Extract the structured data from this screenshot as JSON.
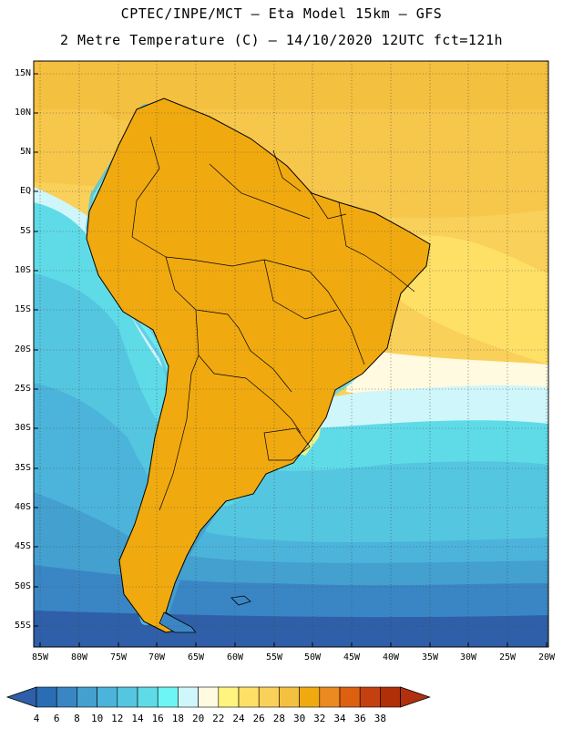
{
  "header": {
    "line1": "CPTEC/INPE/MCT –  Eta Model 15km – GFS",
    "line2": "2 Metre Temperature (C) – 14/10/2020 12UTC fct=121h"
  },
  "map": {
    "lat_labels": [
      "15N",
      "10N",
      "5N",
      "EQ",
      "5S",
      "10S",
      "15S",
      "20S",
      "25S",
      "30S",
      "35S",
      "40S",
      "45S",
      "50S",
      "55S"
    ],
    "lon_labels": [
      "85W",
      "80W",
      "75W",
      "70W",
      "65W",
      "60W",
      "55W",
      "50W",
      "45W",
      "40W",
      "35W",
      "30W",
      "25W",
      "20W"
    ]
  },
  "colorbar": {
    "labels": [
      "4",
      "6",
      "8",
      "10",
      "12",
      "14",
      "16",
      "18",
      "20",
      "22",
      "24",
      "26",
      "28",
      "30",
      "32",
      "34",
      "36",
      "38"
    ],
    "colors": [
      "#2a6db5",
      "#3a86c4",
      "#43a0cf",
      "#4cb4da",
      "#55c6e0",
      "#5fdbe8",
      "#6df4f4",
      "#cff6fa",
      "#fffae0",
      "#fff47e",
      "#ffe066",
      "#f9d059",
      "#f4c03f",
      "#f0aa10",
      "#ea8a20",
      "#dd6010",
      "#c54010",
      "#b02e08"
    ],
    "under_color": "#2f5fa8",
    "over_color": "#b03010"
  }
}
